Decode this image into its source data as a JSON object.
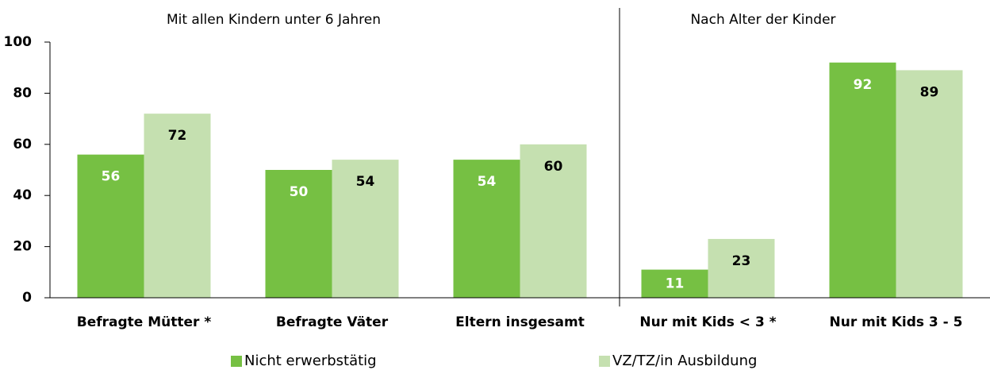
{
  "chart_data": {
    "type": "bar",
    "annotations": [
      "Mit allen Kindern unter 6 Jahren",
      "Nach Alter der Kinder"
    ],
    "categories": [
      "Befragte Mütter *",
      "Befragte Väter",
      "Eltern insgesamt",
      "Nur mit Kids < 3 *",
      "Nur mit Kids 3 - 5"
    ],
    "series": [
      {
        "name": "Nicht erwerbstätig",
        "color": "#76c043",
        "values": [
          56,
          50,
          54,
          11,
          92
        ]
      },
      {
        "name": "VZ/TZ/in Ausbildung",
        "color": "#c5e0b0",
        "values": [
          72,
          54,
          60,
          23,
          89
        ]
      }
    ],
    "ylim": [
      0,
      100
    ],
    "yticks": [
      0,
      20,
      40,
      60,
      80,
      100
    ],
    "grid": false,
    "legend": "bottom"
  }
}
